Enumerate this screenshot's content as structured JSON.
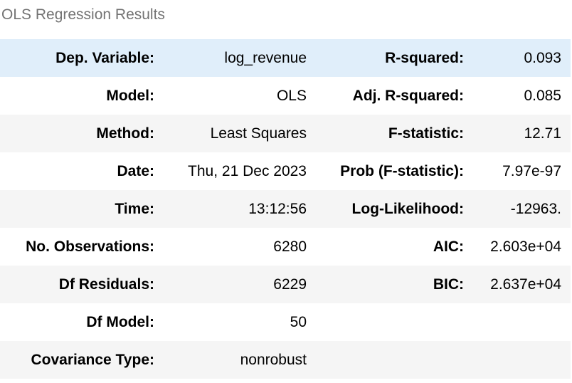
{
  "caption": "OLS Regression Results",
  "rows": [
    {
      "label1": "Dep. Variable:",
      "value1": "log_revenue",
      "label2": "R-squared:",
      "value2": "0.093"
    },
    {
      "label1": "Model:",
      "value1": "OLS",
      "label2": "Adj. R-squared:",
      "value2": "0.085"
    },
    {
      "label1": "Method:",
      "value1": "Least Squares",
      "label2": "F-statistic:",
      "value2": "12.71"
    },
    {
      "label1": "Date:",
      "value1": "Thu, 21 Dec 2023",
      "label2": "Prob (F-statistic):",
      "value2": "7.97e-97"
    },
    {
      "label1": "Time:",
      "value1": "13:12:56",
      "label2": "Log-Likelihood:",
      "value2": "-12963."
    },
    {
      "label1": "No. Observations:",
      "value1": "6280",
      "label2": "AIC:",
      "value2": "2.603e+04"
    },
    {
      "label1": "Df Residuals:",
      "value1": "6229",
      "label2": "BIC:",
      "value2": "2.637e+04"
    },
    {
      "label1": "Df Model:",
      "value1": "50",
      "label2": "",
      "value2": ""
    },
    {
      "label1": "Covariance Type:",
      "value1": "nonrobust",
      "label2": "",
      "value2": ""
    }
  ],
  "colors": {
    "highlight_row": "#e0eefa",
    "striped_row": "#f5f5f5",
    "caption_text": "#737373"
  }
}
